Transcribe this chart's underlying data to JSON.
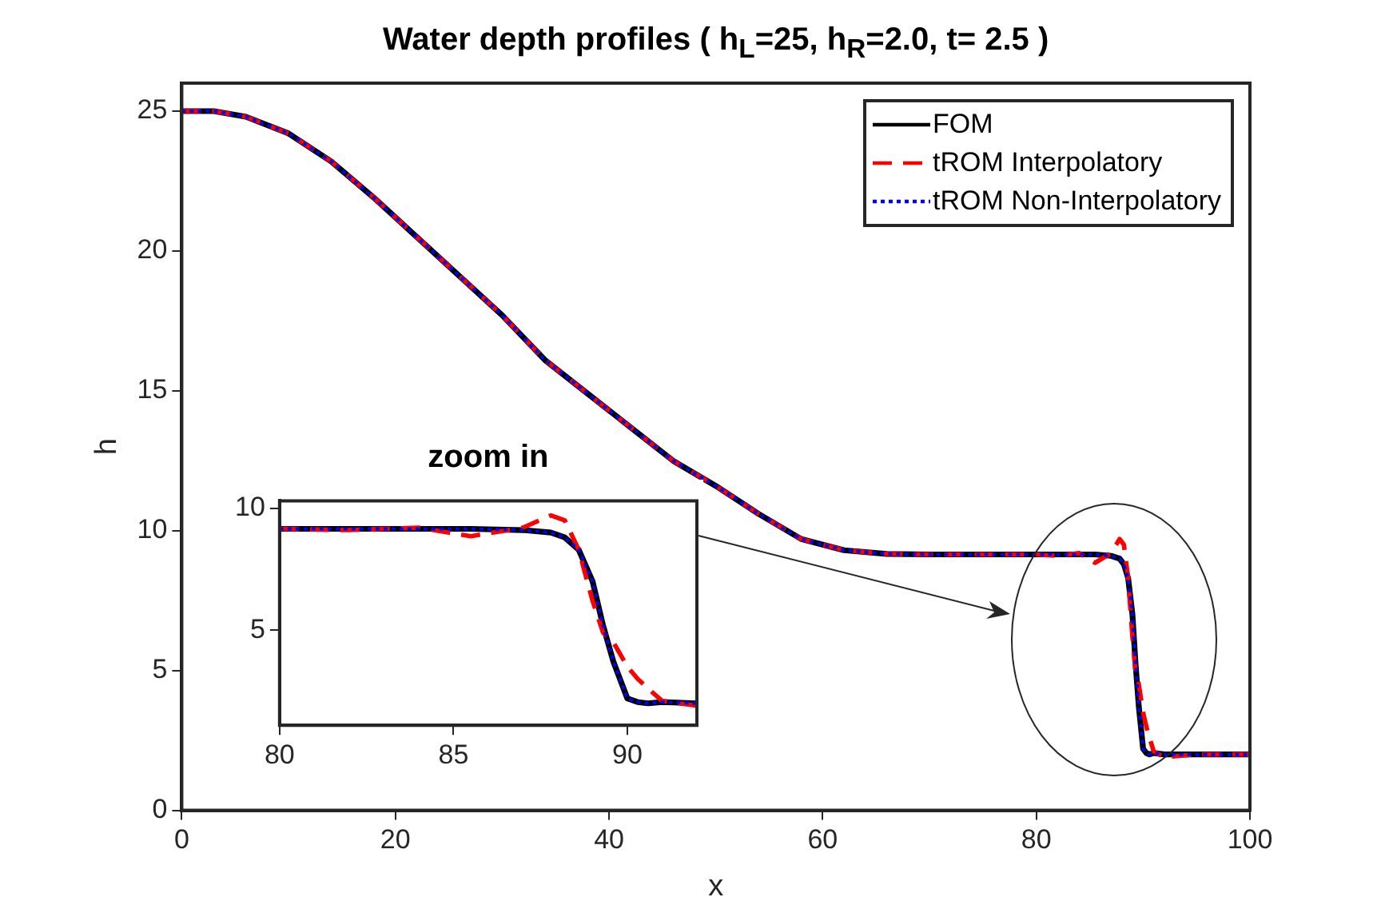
{
  "chart_data": [
    {
      "type": "line",
      "title": "Water depth profiles ( h$_{L}$=25, h$_{R}$=2.0, t= 2.5 )",
      "xlabel": "x",
      "ylabel": "h",
      "x": [
        0,
        3,
        6,
        10,
        14,
        18,
        22,
        26,
        30,
        34,
        38,
        42,
        46,
        50,
        54,
        58,
        62,
        66,
        70,
        75,
        80,
        82,
        84,
        85.5,
        87,
        87.8,
        88.2,
        88.6,
        89,
        89.3,
        89.6,
        90,
        90.3,
        90.6,
        91,
        92,
        95,
        100
      ],
      "series": [
        {
          "name": "FOM",
          "color": "#000000",
          "line_style": "solid",
          "values": [
            25,
            25,
            24.8,
            24.2,
            23.2,
            21.9,
            20.5,
            19.1,
            17.7,
            16.1,
            14.9,
            13.7,
            12.5,
            11.6,
            10.6,
            9.7,
            9.3,
            9.17,
            9.15,
            9.15,
            9.15,
            9.15,
            9.15,
            9.15,
            9.1,
            9.0,
            8.8,
            8.3,
            7.0,
            5.2,
            3.7,
            2.2,
            2.05,
            2.0,
            2.05,
            2.0,
            2.0,
            2.0
          ]
        },
        {
          "name": "tROM Interpolatory",
          "color": "#ff0000",
          "line_style": "dashed",
          "values": [
            25,
            25,
            24.8,
            24.2,
            23.2,
            21.9,
            20.5,
            19.1,
            17.7,
            16.1,
            14.9,
            13.7,
            12.5,
            11.6,
            10.6,
            9.7,
            9.3,
            9.17,
            9.15,
            9.15,
            9.15,
            9.1,
            9.2,
            8.85,
            9.2,
            9.7,
            9.5,
            8.3,
            6.2,
            4.9,
            4.5,
            3.5,
            3.0,
            2.6,
            2.1,
            1.9,
            2.0,
            2.0
          ]
        },
        {
          "name": "tROM Non-Interpolatory",
          "color": "#0000ff",
          "line_style": "dotted",
          "values": [
            25,
            25,
            24.8,
            24.2,
            23.2,
            21.9,
            20.5,
            19.1,
            17.7,
            16.1,
            14.9,
            13.7,
            12.5,
            11.6,
            10.6,
            9.7,
            9.3,
            9.17,
            9.15,
            9.15,
            9.15,
            9.15,
            9.15,
            9.15,
            9.1,
            9.0,
            8.8,
            8.3,
            7.0,
            5.2,
            3.7,
            2.2,
            2.05,
            2.0,
            2.05,
            2.0,
            2.0,
            2.0
          ]
        }
      ],
      "xlim": [
        0,
        100
      ],
      "xticks": [
        0,
        20,
        40,
        60,
        80,
        100
      ],
      "ylim": [
        0,
        26
      ],
      "yticks": [
        0,
        5,
        10,
        15,
        20,
        25
      ],
      "grid": false,
      "legend": "top right",
      "marker": "none"
    },
    {
      "type": "line",
      "title": "zoom in",
      "x": [
        80,
        82,
        84,
        85.5,
        87,
        87.8,
        88.2,
        88.6,
        89,
        89.3,
        89.6,
        90,
        90.3,
        90.6,
        91,
        92
      ],
      "series": [
        {
          "color": "#000000",
          "line_style": "solid",
          "values": [
            9.15,
            9.15,
            9.15,
            9.15,
            9.1,
            9.0,
            8.8,
            8.3,
            7.0,
            5.2,
            3.7,
            2.2,
            2.05,
            2.0,
            2.05,
            2.0
          ]
        },
        {
          "color": "#ff0000",
          "line_style": "dashed",
          "values": [
            9.15,
            9.1,
            9.2,
            8.85,
            9.2,
            9.7,
            9.5,
            8.3,
            6.2,
            4.9,
            4.5,
            3.5,
            3.0,
            2.6,
            2.1,
            1.9
          ]
        },
        {
          "color": "#0000ff",
          "line_style": "dotted",
          "values": [
            9.15,
            9.15,
            9.15,
            9.15,
            9.1,
            9.0,
            8.8,
            8.3,
            7.0,
            5.2,
            3.7,
            2.2,
            2.05,
            2.0,
            2.05,
            2.0
          ]
        }
      ],
      "xlim": [
        80,
        92
      ],
      "xticks": [
        80,
        85,
        90
      ],
      "ylim": [
        1.1,
        10.3
      ],
      "yticks": [
        5,
        10
      ],
      "grid": false,
      "legend": false,
      "marker": "none"
    }
  ]
}
